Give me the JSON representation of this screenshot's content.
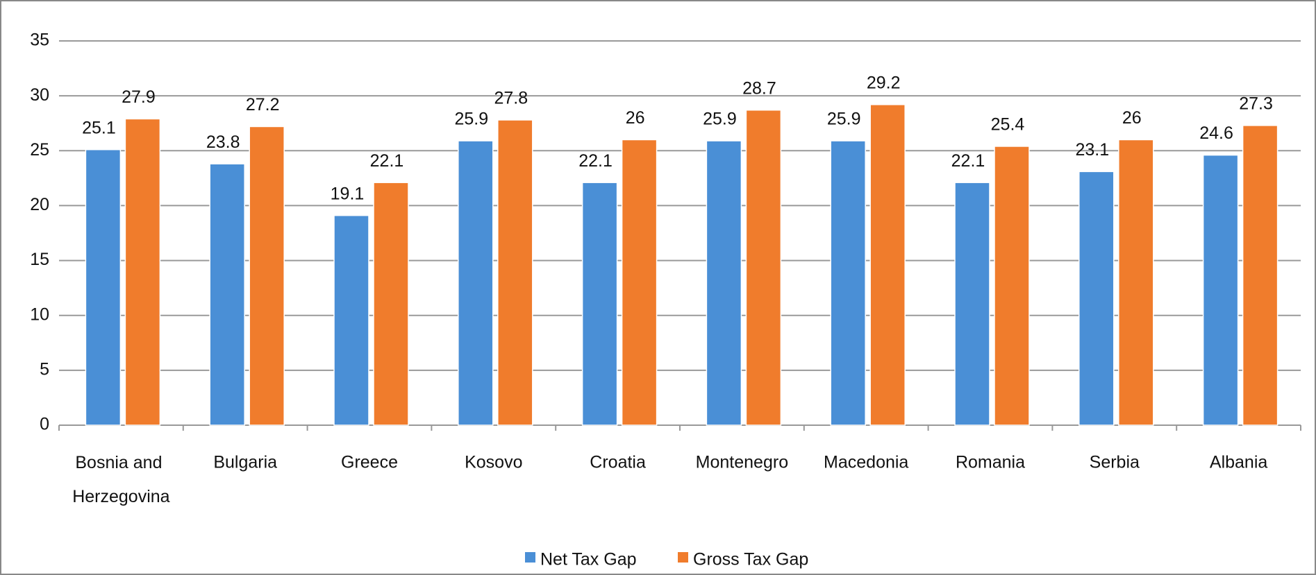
{
  "chart_data": {
    "type": "bar",
    "categories": [
      "Bosnia and Herzegovina",
      "Bulgaria",
      "Greece",
      "Kosovo",
      "Croatia",
      "Montenegro",
      "Macedonia",
      "Romania",
      "Serbia",
      "Albania"
    ],
    "series": [
      {
        "name": "Net Tax Gap",
        "color": "#4a8fd6",
        "values": [
          25.1,
          23.8,
          19.1,
          25.9,
          22.1,
          25.9,
          25.9,
          22.1,
          23.1,
          24.6
        ]
      },
      {
        "name": "Gross Tax Gap",
        "color": "#f07c2c",
        "values": [
          27.9,
          27.2,
          22.1,
          27.8,
          26,
          28.7,
          29.2,
          25.4,
          26,
          27.3
        ]
      }
    ],
    "ylim": [
      0,
      35
    ],
    "yticks": [
      0,
      5,
      10,
      15,
      20,
      25,
      30,
      35
    ],
    "grid": true,
    "legend": "bottom"
  }
}
